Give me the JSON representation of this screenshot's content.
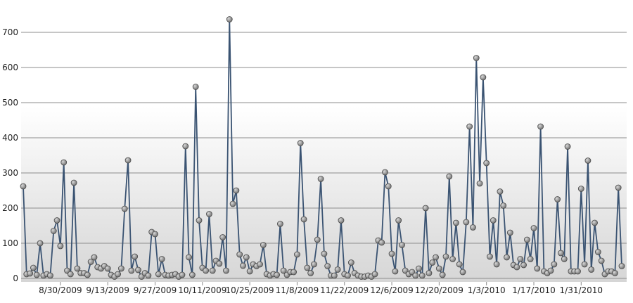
{
  "chart_data": {
    "type": "line",
    "title": "",
    "xlabel": "",
    "ylabel": "",
    "ylim": [
      0,
      750
    ],
    "y_ticks": [
      "0",
      "100",
      "200",
      "300",
      "400",
      "500",
      "600",
      "700"
    ],
    "x_tick_labels": [
      "8/30/2009",
      "9/13/2009",
      "9/27/2009",
      "10/11/2009",
      "10/25/2009",
      "11/8/2009",
      "11/22/2009",
      "12/6/2009",
      "12/20/2009",
      "1/3/2010",
      "1/17/2010",
      "1/31/2010"
    ],
    "grid": true,
    "legend": "none",
    "colors": {
      "line": "#3a5372",
      "marker": "#8a8a8a",
      "marker_stroke": "#4a4a4a",
      "plot_top": "#ffffff",
      "plot_bottom": "#d9d9d9"
    },
    "series": [
      {
        "values": [
          262,
          12,
          14,
          30,
          10,
          100,
          8,
          12,
          8,
          135,
          165,
          92,
          330,
          22,
          12,
          272,
          28,
          15,
          15,
          10,
          47,
          60,
          32,
          28,
          35,
          28,
          10,
          5,
          12,
          28,
          198,
          336,
          22,
          62,
          24,
          5,
          15,
          8,
          132,
          126,
          12,
          55,
          10,
          8,
          10,
          12,
          5,
          10,
          376,
          60,
          10,
          545,
          165,
          30,
          22,
          183,
          22,
          50,
          42,
          117,
          22,
          737,
          212,
          250,
          68,
          36,
          60,
          20,
          40,
          35,
          40,
          95,
          12,
          8,
          12,
          10,
          155,
          22,
          10,
          18,
          18,
          68,
          385,
          168,
          30,
          15,
          40,
          110,
          283,
          70,
          35,
          8,
          8,
          25,
          165,
          12,
          8,
          45,
          15,
          8,
          5,
          5,
          8,
          5,
          12,
          108,
          102,
          302,
          262,
          70,
          20,
          165,
          95,
          22,
          12,
          18,
          8,
          28,
          8,
          200,
          15,
          45,
          60,
          28,
          10,
          62,
          290,
          55,
          158,
          40,
          18,
          160,
          432,
          145,
          627,
          270,
          572,
          328,
          62,
          165,
          40,
          247,
          207,
          60,
          130,
          38,
          32,
          55,
          38,
          110,
          55,
          143,
          28,
          432,
          20,
          15,
          22,
          40,
          225,
          72,
          55,
          375,
          20,
          20,
          20,
          255,
          40,
          335,
          25,
          158,
          75,
          50,
          12,
          20,
          20,
          15,
          258,
          35
        ]
      }
    ]
  }
}
